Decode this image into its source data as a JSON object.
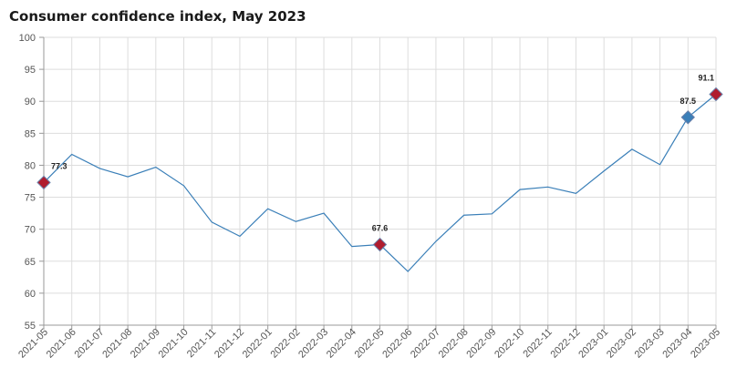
{
  "chart_data": {
    "type": "line",
    "title": "Consumer confidence index, May 2023",
    "xlabel": "",
    "ylabel": "",
    "ylim": [
      55,
      100
    ],
    "yticks": [
      55,
      60,
      65,
      70,
      75,
      80,
      85,
      90,
      95,
      100
    ],
    "grid": true,
    "legend": "none",
    "categories": [
      "2021-05",
      "2021-06",
      "2021-07",
      "2021-08",
      "2021-09",
      "2021-10",
      "2021-11",
      "2021-12",
      "2022-01",
      "2022-02",
      "2022-03",
      "2022-04",
      "2022-05",
      "2022-06",
      "2022-07",
      "2022-08",
      "2022-09",
      "2022-10",
      "2022-11",
      "2022-12",
      "2023-01",
      "2023-02",
      "2023-03",
      "2023-04",
      "2023-05"
    ],
    "series": [
      {
        "values": [
          77.3,
          81.7,
          79.5,
          78.2,
          79.7,
          76.8,
          71.1,
          68.9,
          73.2,
          71.2,
          72.5,
          67.3,
          67.6,
          63.4,
          68.1,
          72.2,
          72.4,
          76.2,
          76.6,
          75.6,
          79.1,
          82.5,
          80.1,
          87.5,
          91.1
        ],
        "color": "#3a7fb8"
      }
    ],
    "highlights": [
      {
        "category": "2021-05",
        "value": 77.3,
        "label": "77.3",
        "color": "#b01c2e"
      },
      {
        "category": "2022-05",
        "value": 67.6,
        "label": "67.6",
        "color": "#b01c2e"
      },
      {
        "category": "2023-04",
        "value": 87.5,
        "label": "87.5",
        "color": "#3a7fb8"
      },
      {
        "category": "2023-05",
        "value": 91.1,
        "label": "91.1",
        "color": "#b01c2e"
      }
    ]
  }
}
